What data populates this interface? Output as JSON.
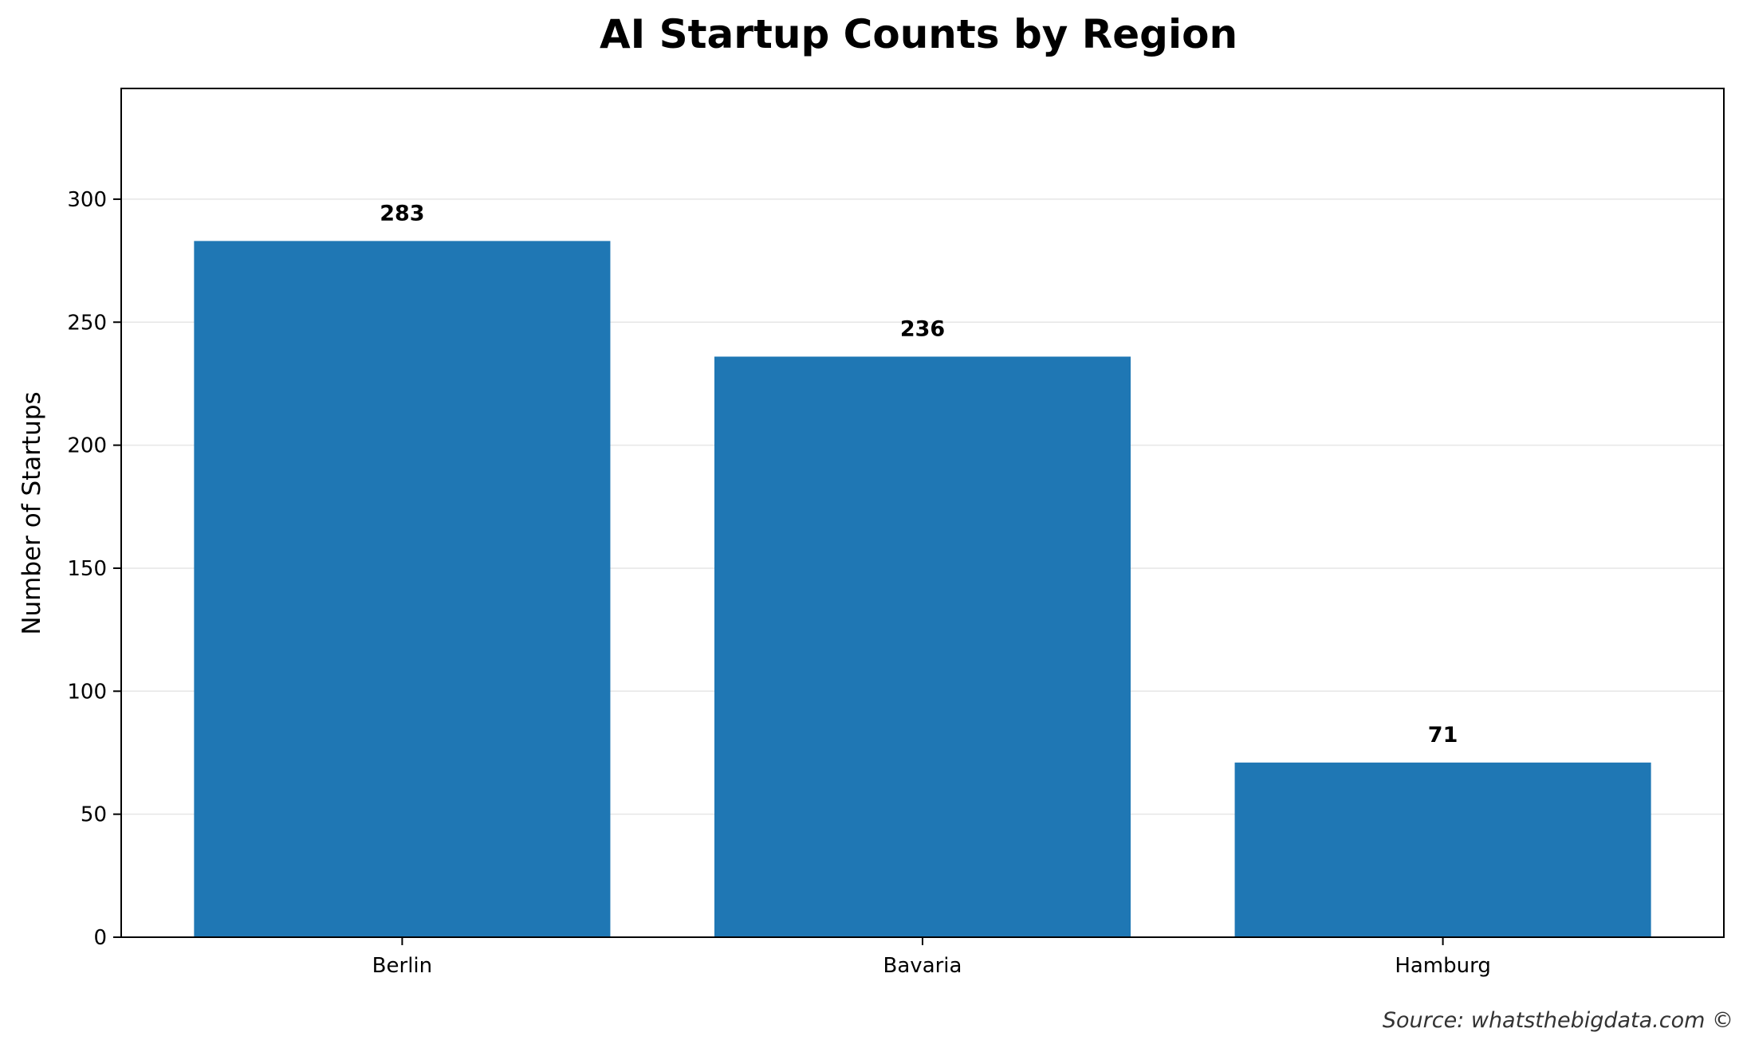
{
  "chart_data": {
    "type": "bar",
    "title": "AI Startup Counts by Region",
    "xlabel": "",
    "ylabel": "Number of Startups",
    "categories": [
      "Berlin",
      "Bavaria",
      "Hamburg"
    ],
    "values": [
      283,
      236,
      71
    ],
    "data_labels": [
      "283",
      "236",
      "71"
    ],
    "ylim": [
      0,
      345
    ],
    "yticks": [
      0,
      50,
      100,
      150,
      200,
      250,
      300
    ],
    "ytick_labels": [
      "0",
      "50",
      "100",
      "150",
      "200",
      "250",
      "300"
    ],
    "grid": "y-axis, light gray",
    "legend": "none",
    "bar_color": "#1f77b4",
    "source": "Source: whatsthebigdata.com ©"
  }
}
